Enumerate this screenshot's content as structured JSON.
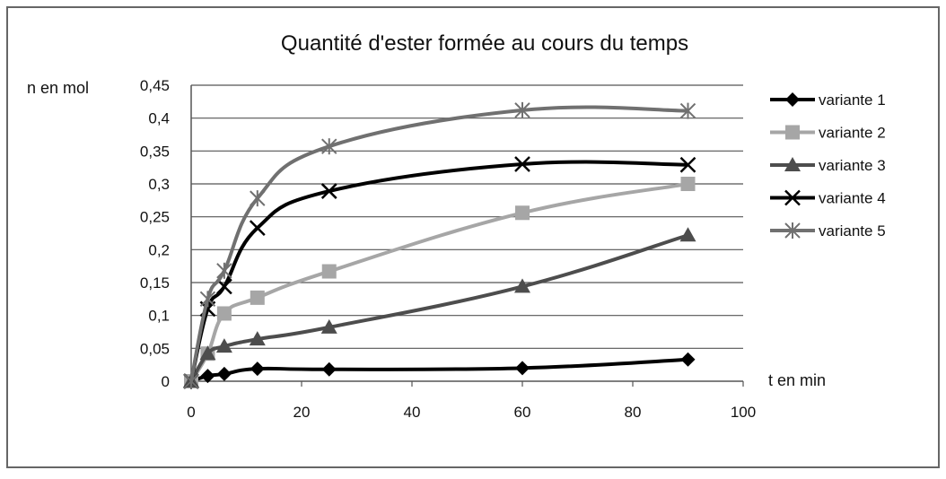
{
  "chart_data": {
    "type": "line",
    "title": "Quantité d'ester formée au cours du temps",
    "ylabel": "n en mol",
    "xlabel": "t en min",
    "xlim": [
      0,
      100
    ],
    "ylim": [
      0,
      0.45
    ],
    "xticks": [
      "0",
      "20",
      "40",
      "60",
      "80",
      "100"
    ],
    "yticks": [
      "0",
      "0,05",
      "0,1",
      "0,15",
      "0,2",
      "0,25",
      "0,3",
      "0,35",
      "0,4",
      "0,45"
    ],
    "grid": "horizontal",
    "legend_position": "right",
    "series": [
      {
        "name": "variante 1",
        "color": "#000000",
        "marker": "diamond",
        "x": [
          0,
          3,
          6,
          12,
          25,
          60,
          90
        ],
        "y": [
          0,
          0.008,
          0.011,
          0.019,
          0.018,
          0.02,
          0.033
        ]
      },
      {
        "name": "variante 2",
        "color": "#a6a6a6",
        "marker": "square",
        "x": [
          0,
          3,
          6,
          12,
          25,
          60,
          90
        ],
        "y": [
          0,
          0.042,
          0.103,
          0.127,
          0.167,
          0.256,
          0.3
        ]
      },
      {
        "name": "variante 3",
        "color": "#4d4d4d",
        "marker": "triangle",
        "x": [
          0,
          3,
          6,
          12,
          25,
          60,
          90
        ],
        "y": [
          0,
          0.042,
          0.053,
          0.064,
          0.082,
          0.144,
          0.222
        ]
      },
      {
        "name": "variante 4",
        "color": "#000000",
        "marker": "x",
        "x": [
          0,
          3,
          6,
          12,
          25,
          60,
          90
        ],
        "y": [
          0,
          0.11,
          0.144,
          0.233,
          0.289,
          0.33,
          0.329
        ]
      },
      {
        "name": "variante 5",
        "color": "#707070",
        "marker": "asterisk",
        "x": [
          0,
          3,
          6,
          12,
          25,
          60,
          90
        ],
        "y": [
          0,
          0.125,
          0.168,
          0.278,
          0.357,
          0.412,
          0.411
        ]
      }
    ]
  }
}
